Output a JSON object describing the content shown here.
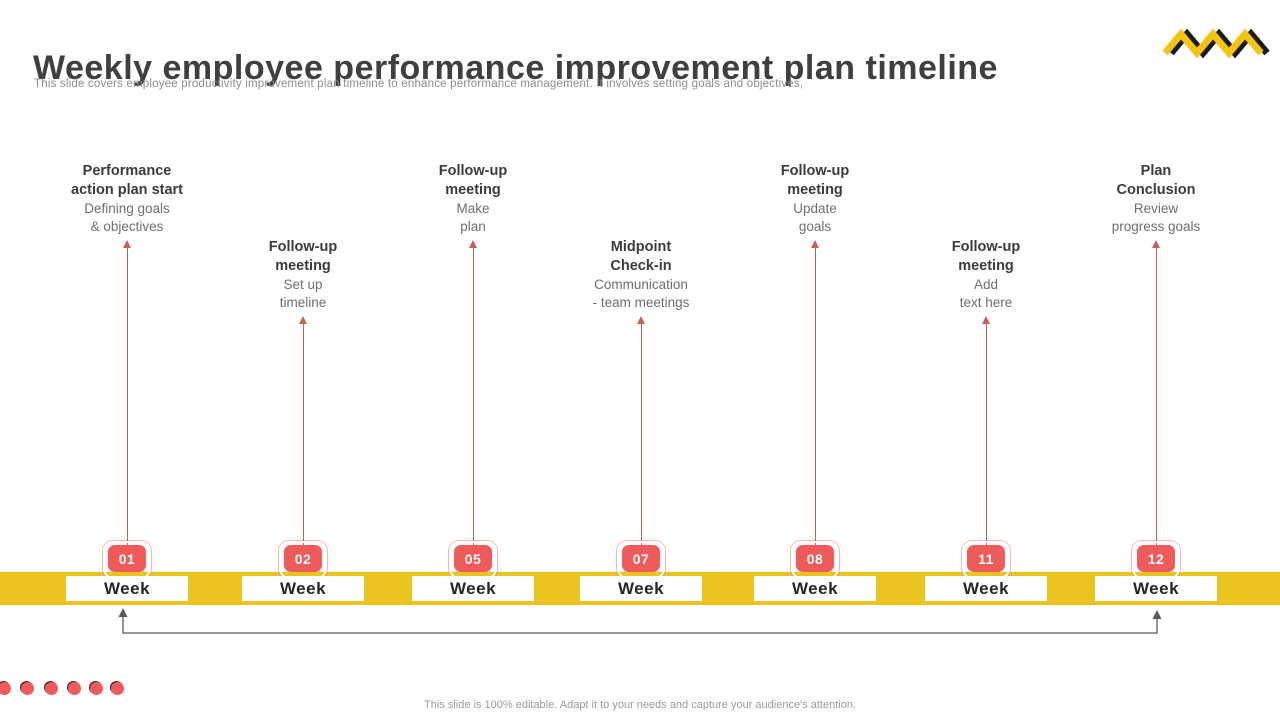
{
  "slide": {
    "title": "Weekly employee performance improvement plan timeline",
    "subtitle": "This slide covers employee productivity improvement plan timeline to enhance performance management. It involves setting goals and objectives,",
    "footer": "This slide is 100% editable. Adapt it to your needs and capture your audience's attention.",
    "week_label": "Week"
  },
  "milestones": [
    {
      "week": "01",
      "title": "Performance\naction plan start",
      "desc": "Defining goals\n& objectives",
      "position": "high"
    },
    {
      "week": "02",
      "title": "Follow-up\nmeeting",
      "desc": "Set up\ntimeline",
      "position": "low"
    },
    {
      "week": "05",
      "title": "Follow-up\nmeeting",
      "desc": "Make\nplan",
      "position": "high"
    },
    {
      "week": "07",
      "title": "Midpoint\nCheck-in",
      "desc": "Communication\n- team meetings",
      "position": "low"
    },
    {
      "week": "08",
      "title": "Follow-up\nmeeting",
      "desc": "Update\ngoals",
      "position": "high"
    },
    {
      "week": "11",
      "title": "Follow-up\nmeeting",
      "desc": "Add\ntext here",
      "position": "low"
    },
    {
      "week": "12",
      "title": "Plan\nConclusion",
      "desc": "Review\nprogress goals",
      "position": "high"
    }
  ],
  "decor": {
    "dots_count": 6,
    "logo_icon": "zigzag-logo-icon"
  },
  "colors": {
    "badge_red": "#ef5a5b",
    "bar_yellow": "#eac31e",
    "arrow_red": "#c4615e",
    "connector_gray": "#595959",
    "title_dark": "#3f3f3f",
    "subtitle_gray": "#8c8c8c",
    "logo_yellow": "#f2c511",
    "logo_black": "#1a1a1a"
  }
}
